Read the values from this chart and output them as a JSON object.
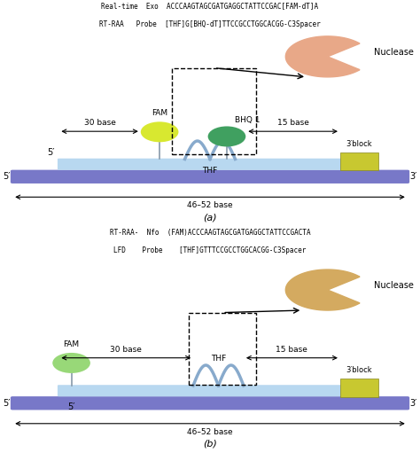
{
  "title_a_line1": "Real-time  Exo  ACCCAAGTAGCGATGAGGCTATTCCGAC[FAM-dT]A",
  "title_a_line2": "RT-RAA   Probe  [THF]G[BHQ-dT]TTCCGCCTGGCACGG-C3Spacer",
  "title_b_line1": "RT-RAA-  Nfo  (FAM)ACCCAAGTAGCGATGAGGCTATTCCGACTA",
  "title_b_line2": "LFD    Probe    [THF]GTTTCCGCCTGGCACGG-C3Spacer",
  "caption_a": "(a)",
  "caption_b": "(b)",
  "background_color": "#ffffff",
  "probe_color": "#b8d8f0",
  "template_color": "#7878c8",
  "fam_color_a": "#d8e830",
  "bhq_color": "#40a060",
  "fam_color_b": "#98d878",
  "block_color_a": "#c8c830",
  "block_color_b": "#c8c830",
  "nuclease_color_a": "#e8a888",
  "nuclease_color_b": "#d4aa60",
  "thf_color": "#88aacc",
  "text_color": "#000000"
}
